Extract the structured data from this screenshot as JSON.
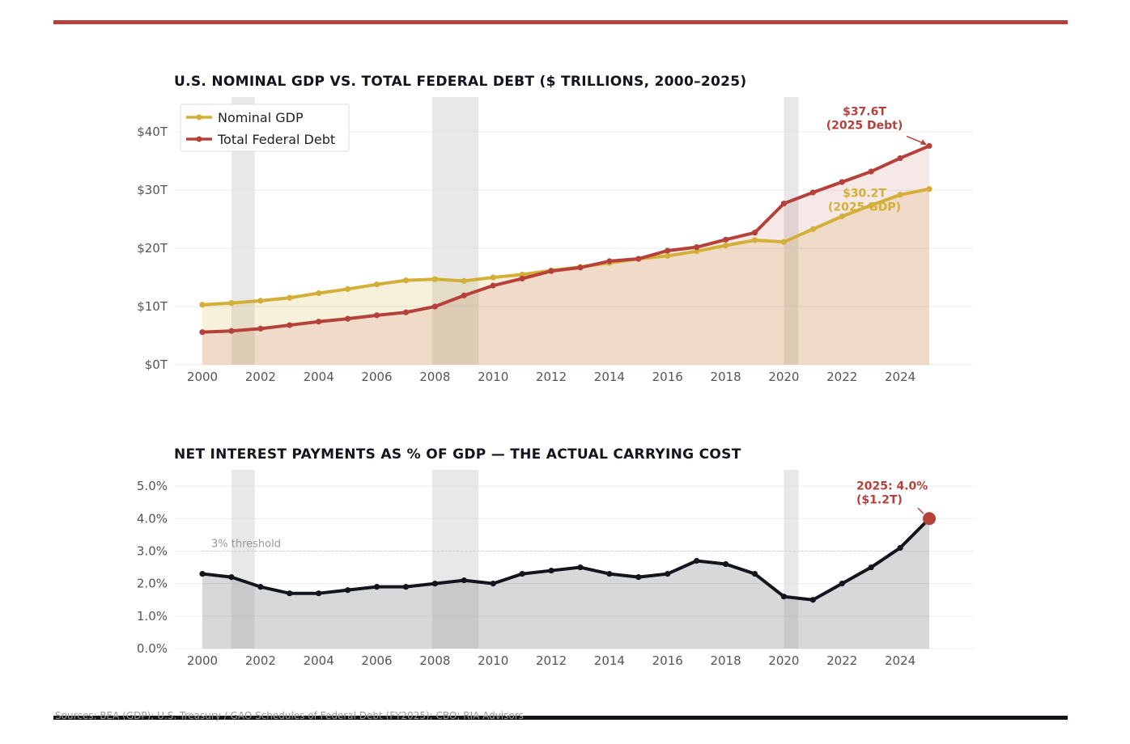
{
  "source_note": "Sources: BEA (GDP); U.S. Treasury / GAO Schedules of Federal Debt (FY2025); CBO; RIA Advisors",
  "colors": {
    "accent": "#b5413a",
    "gdp": "#d4af37",
    "debt": "#b5413a",
    "interest": "#14141c",
    "recession": "#d9d9d9"
  },
  "chart_data": [
    {
      "type": "line",
      "title": "U.S. NOMINAL GDP VS. TOTAL FEDERAL DEBT ($ TRILLIONS, 2000–2025)",
      "x": [
        2000,
        2001,
        2002,
        2003,
        2004,
        2005,
        2006,
        2007,
        2008,
        2009,
        2010,
        2011,
        2012,
        2013,
        2014,
        2015,
        2016,
        2017,
        2018,
        2019,
        2020,
        2021,
        2022,
        2023,
        2024,
        2025
      ],
      "series": [
        {
          "name": "Nominal GDP",
          "color": "#d4af37",
          "values": [
            10.3,
            10.6,
            11.0,
            11.5,
            12.3,
            13.0,
            13.8,
            14.5,
            14.7,
            14.4,
            15.0,
            15.5,
            16.2,
            16.8,
            17.5,
            18.2,
            18.7,
            19.5,
            20.5,
            21.4,
            21.1,
            23.3,
            25.5,
            27.4,
            29.2,
            30.2
          ]
        },
        {
          "name": "Total Federal Debt",
          "color": "#b5413a",
          "values": [
            5.6,
            5.8,
            6.2,
            6.8,
            7.4,
            7.9,
            8.5,
            9.0,
            10.0,
            11.9,
            13.6,
            14.8,
            16.1,
            16.7,
            17.8,
            18.2,
            19.6,
            20.2,
            21.5,
            22.7,
            27.7,
            29.6,
            31.4,
            33.2,
            35.5,
            37.6
          ]
        }
      ],
      "xlabel": "",
      "ylabel": "",
      "x_ticks": [
        "2000",
        "2002",
        "2004",
        "2006",
        "2008",
        "2010",
        "2012",
        "2014",
        "2016",
        "2018",
        "2020",
        "2022",
        "2024"
      ],
      "y_ticks": [
        "$0T",
        "$10T",
        "$20T",
        "$30T",
        "$40T"
      ],
      "ylim": [
        0,
        46
      ],
      "xlim": [
        1999,
        2026.5
      ],
      "recessions": [
        [
          2001.0,
          2001.8
        ],
        [
          2007.9,
          2009.5
        ],
        [
          2020.0,
          2020.5
        ]
      ],
      "legend": {
        "position": "top-left",
        "entries": [
          "Nominal GDP",
          "Total Federal Debt"
        ]
      },
      "annotations": [
        {
          "line1": "$37.6T",
          "line2": "(2025 Debt)",
          "x": 2025,
          "y": 37.6,
          "color": "#b5413a"
        },
        {
          "line1": "$30.2T",
          "line2": "(2025 GDP)",
          "x": 2025,
          "y": 30.2,
          "color": "#d4af37"
        }
      ],
      "grid": true
    },
    {
      "type": "area",
      "title": "NET INTEREST PAYMENTS AS % OF GDP — THE ACTUAL CARRYING COST",
      "x": [
        2000,
        2001,
        2002,
        2003,
        2004,
        2005,
        2006,
        2007,
        2008,
        2009,
        2010,
        2011,
        2012,
        2013,
        2014,
        2015,
        2016,
        2017,
        2018,
        2019,
        2020,
        2021,
        2022,
        2023,
        2024,
        2025
      ],
      "series": [
        {
          "color": "#14141c",
          "values": [
            2.3,
            2.2,
            1.9,
            1.7,
            1.7,
            1.8,
            1.9,
            1.9,
            2.0,
            2.1,
            2.0,
            2.3,
            2.4,
            2.5,
            2.3,
            2.2,
            2.3,
            2.7,
            2.6,
            2.3,
            1.6,
            1.5,
            2.0,
            2.5,
            3.1,
            4.0
          ]
        }
      ],
      "xlabel": "",
      "ylabel": "",
      "x_ticks": [
        "2000",
        "2002",
        "2004",
        "2006",
        "2008",
        "2010",
        "2012",
        "2014",
        "2016",
        "2018",
        "2020",
        "2022",
        "2024"
      ],
      "y_ticks": [
        "0.0%",
        "1.0%",
        "2.0%",
        "3.0%",
        "4.0%",
        "5.0%"
      ],
      "ylim": [
        0,
        5.5
      ],
      "xlim": [
        1999,
        2026.5
      ],
      "recessions": [
        [
          2001.0,
          2001.8
        ],
        [
          2007.9,
          2009.5
        ],
        [
          2020.0,
          2020.5
        ]
      ],
      "threshold": {
        "value": 3.0,
        "label": "3% threshold"
      },
      "annotations": [
        {
          "line1": "2025: 4.0%",
          "line2": "($1.2T)",
          "x": 2025,
          "y": 4.0,
          "color": "#b5413a"
        }
      ],
      "grid": true
    }
  ]
}
